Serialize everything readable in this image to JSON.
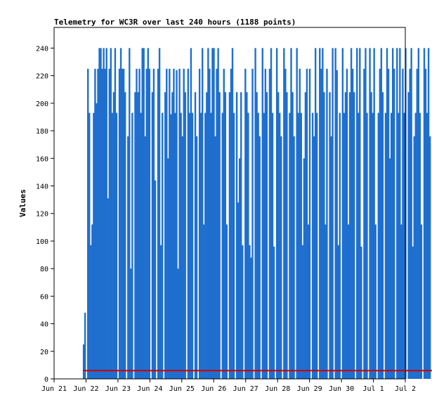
{
  "chart_data": {
    "type": "bar",
    "title": "Telemetry for WC3R over last 240 hours (1188 points)",
    "ylabel": "Values",
    "xlabel": "",
    "ylim": [
      0,
      255
    ],
    "yticks": [
      0,
      20,
      40,
      60,
      80,
      100,
      120,
      140,
      160,
      180,
      200,
      220,
      240
    ],
    "x_range": [
      "2024-06-21",
      "2024-07-02"
    ],
    "x_ticks": [
      "Jun 21",
      "Jun 22",
      "Jun 23",
      "Jun 24",
      "Jun 25",
      "Jun 26",
      "Jun 27",
      "Jun 28",
      "Jun 29",
      "Jun 30",
      "Jul 1",
      "Jul 2"
    ],
    "grid": false,
    "series": [
      {
        "color": "#1f6fcf",
        "x_start_day": 0.9,
        "x_end_day": 12.15,
        "values": [
          25,
          48,
          0,
          225,
          193,
          97,
          112,
          193,
          225,
          200,
          225,
          240,
          240,
          225,
          240,
          225,
          240,
          131,
          225,
          240,
          193,
          208,
          240,
          193,
          0,
          225,
          240,
          225,
          225,
          208,
          0,
          176,
          240,
          80,
          193,
          0,
          208,
          225,
          208,
          225,
          193,
          240,
          240,
          176,
          225,
          240,
          225,
          0,
          208,
          225,
          144,
          0,
          225,
          240,
          97,
          193,
          0,
          208,
          225,
          160,
          225,
          192,
          208,
          225,
          193,
          224,
          80,
          225,
          193,
          176,
          225,
          208,
          0,
          225,
          193,
          240,
          193,
          0,
          208,
          176,
          0,
          225,
          193,
          240,
          112,
          193,
          208,
          240,
          225,
          193,
          240,
          240,
          176,
          225,
          240,
          208,
          0,
          193,
          225,
          208,
          112,
          0,
          208,
          225,
          240,
          193,
          0,
          208,
          128,
          160,
          208,
          97,
          0,
          225,
          208,
          193,
          97,
          88,
          225,
          0,
          240,
          208,
          193,
          176,
          0,
          240,
          193,
          225,
          208,
          0,
          225,
          240,
          193,
          96,
          0,
          240,
          208,
          193,
          176,
          0,
          240,
          225,
          208,
          0,
          193,
          240,
          208,
          176,
          0,
          240,
          193,
          225,
          193,
          97,
          160,
          208,
          225,
          112,
          225,
          0,
          193,
          176,
          240,
          193,
          0,
          240,
          225,
          240,
          208,
          112,
          225,
          0,
          208,
          176,
          240,
          0,
          240,
          224,
          97,
          193,
          0,
          240,
          193,
          208,
          225,
          112,
          208,
          240,
          225,
          208,
          0,
          240,
          193,
          240,
          96,
          0,
          225,
          240,
          193,
          0,
          240,
          208,
          193,
          240,
          112,
          0,
          193,
          225,
          240,
          208,
          0,
          193,
          240,
          225,
          160,
          193,
          240,
          225,
          0,
          240,
          193,
          240,
          112,
          225,
          193,
          240,
          0,
          208,
          225,
          240,
          96,
          176,
          193,
          225,
          240,
          193,
          112,
          0,
          240,
          225,
          193,
          240,
          176,
          0,
          225,
          240,
          193,
          225,
          0,
          112,
          97
        ]
      },
      {
        "color": "#cc0000",
        "x_start_day": 0.9,
        "x_end_day": 12.15,
        "constant": 6
      }
    ]
  }
}
